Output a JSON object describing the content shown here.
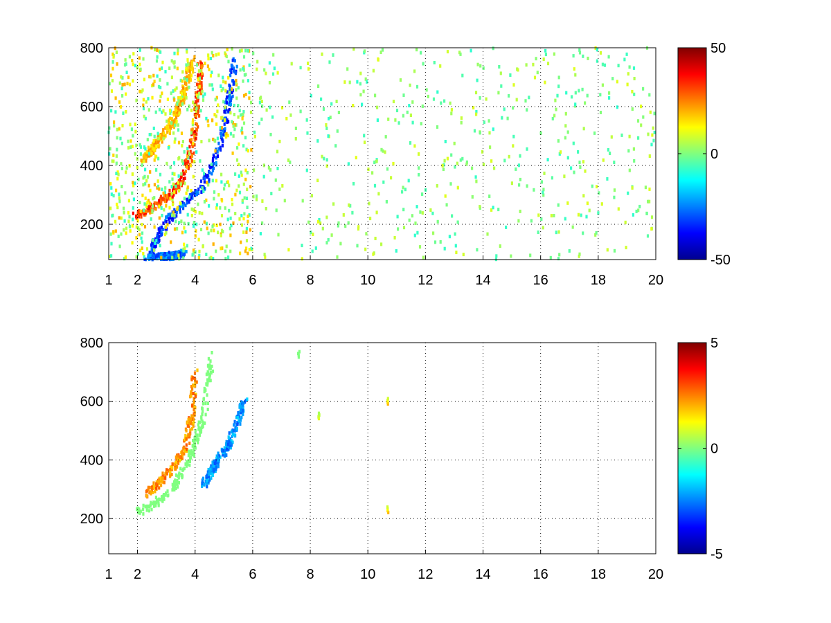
{
  "chart_data": [
    {
      "type": "heatmap",
      "title": "",
      "xlabel": "",
      "ylabel": "",
      "xlim": [
        1,
        20
      ],
      "ylim": [
        80,
        800
      ],
      "grid": true,
      "x_ticks": [
        1,
        2,
        4,
        6,
        8,
        10,
        12,
        14,
        16,
        18,
        20
      ],
      "y_ticks": [
        200,
        400,
        600,
        800
      ],
      "colormap": "jet",
      "colorbar": {
        "min": -50,
        "max": 50,
        "ticks": [
          50,
          0,
          -50
        ]
      },
      "features": [
        {
          "description": "positive ridge",
          "points": [
            [
              1.9,
              230
            ],
            [
              2.5,
              255
            ],
            [
              3.0,
              290
            ],
            [
              3.5,
              340
            ],
            [
              3.8,
              420
            ],
            [
              4.0,
              520
            ],
            [
              4.1,
              620
            ],
            [
              4.2,
              760
            ]
          ],
          "value": 40
        },
        {
          "description": "negative ridge",
          "points": [
            [
              2.3,
              75
            ],
            [
              3.0,
              210
            ],
            [
              3.6,
              270
            ],
            [
              4.2,
              320
            ],
            [
              4.7,
              420
            ],
            [
              5.0,
              520
            ],
            [
              5.2,
              640
            ],
            [
              5.4,
              760
            ]
          ],
          "value": -40
        },
        {
          "description": "upper positive band",
          "points": [
            [
              2.2,
              420
            ],
            [
              2.7,
              480
            ],
            [
              3.2,
              540
            ],
            [
              3.6,
              640
            ],
            [
              3.9,
              760
            ]
          ],
          "value": 25
        },
        {
          "description": "low negative patch",
          "points": [
            [
              2.4,
              85
            ],
            [
              3.0,
              90
            ],
            [
              3.6,
              100
            ]
          ],
          "value": -35
        }
      ],
      "scatter_density": "sparse values near 0 across x = 6 to 20"
    },
    {
      "type": "heatmap",
      "title": "",
      "xlabel": "",
      "ylabel": "",
      "xlim": [
        1,
        20
      ],
      "ylim": [
        80,
        800
      ],
      "grid": true,
      "x_ticks": [
        1,
        2,
        4,
        6,
        8,
        10,
        12,
        14,
        16,
        18,
        20
      ],
      "y_ticks": [
        200,
        400,
        600,
        800
      ],
      "colormap": "jet",
      "colorbar": {
        "min": -5,
        "max": 5,
        "ticks": [
          5,
          0,
          -5
        ]
      },
      "features": [
        {
          "description": "positive ridge",
          "points": [
            [
              2.3,
              280
            ],
            [
              2.8,
              330
            ],
            [
              3.3,
              380
            ],
            [
              3.7,
              450
            ],
            [
              3.9,
              560
            ],
            [
              4.0,
              700
            ]
          ],
          "value": 3
        },
        {
          "description": "negative ridge",
          "points": [
            [
              4.3,
              320
            ],
            [
              4.8,
              400
            ],
            [
              5.2,
              460
            ],
            [
              5.5,
              530
            ],
            [
              5.7,
              600
            ]
          ],
          "value": -3
        },
        {
          "description": "neutral band",
          "points": [
            [
              2.0,
              220
            ],
            [
              2.6,
              250
            ],
            [
              3.2,
              300
            ],
            [
              3.8,
              400
            ],
            [
              4.3,
              550
            ],
            [
              4.6,
              760
            ]
          ],
          "value": 0
        }
      ],
      "isolated_points": [
        {
          "x": 10.7,
          "y": 600,
          "value": 2
        },
        {
          "x": 10.7,
          "y": 230,
          "value": 2
        },
        {
          "x": 7.6,
          "y": 760,
          "value": 0
        },
        {
          "x": 8.3,
          "y": 550,
          "value": 1
        }
      ]
    }
  ]
}
